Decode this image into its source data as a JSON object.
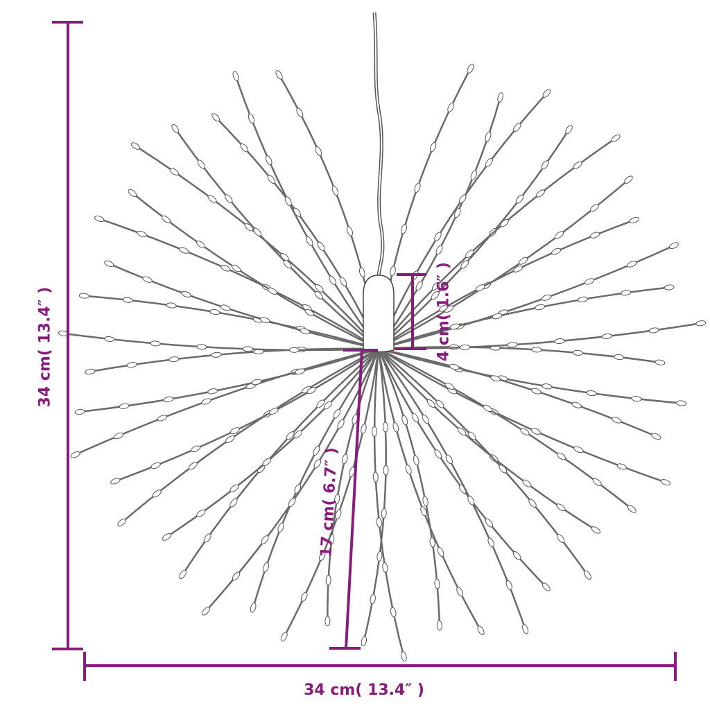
{
  "colors": {
    "dimension": "#8a1a7c",
    "wire": "#555555",
    "background": "#ffffff"
  },
  "dimensions": {
    "height": "34 cm( 13.4″ )",
    "width": "34 cm( 13.4″ )",
    "housing": "4 cm( 1.6″ )",
    "ray_length": "17 cm( 6.7″ )"
  }
}
